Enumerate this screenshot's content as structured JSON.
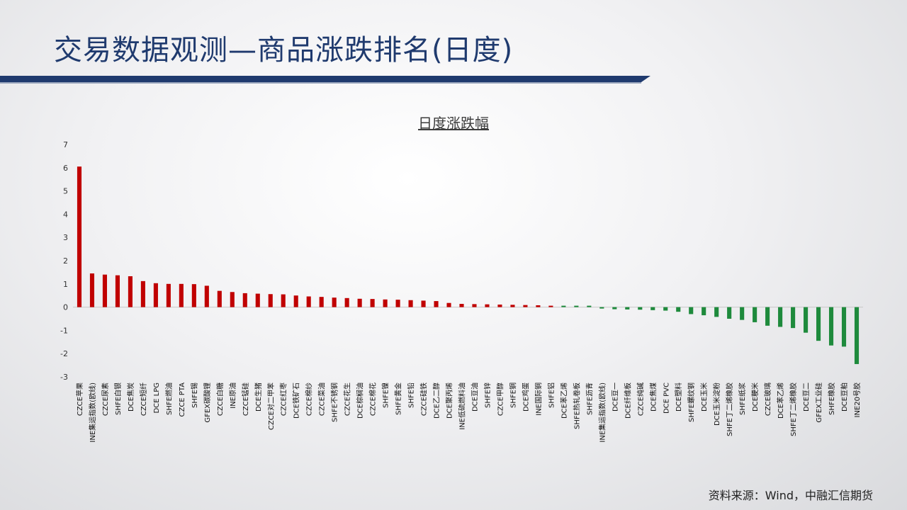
{
  "slide": {
    "title": "交易数据观测—商品涨跌排名(日度)",
    "source": "资料来源：Wind，中融汇信期货"
  },
  "colors": {
    "up": "#c00000",
    "down": "#1e8a3c",
    "title": "#1f3a6e",
    "band": "#1f3a6e"
  },
  "chart_data": {
    "type": "bar",
    "title": "日度涨跌幅",
    "xlabel": "",
    "ylabel": "",
    "ylim": [
      -3,
      7
    ],
    "yticks": [
      -3,
      -2,
      -1,
      0,
      1,
      2,
      3,
      4,
      5,
      6,
      7
    ],
    "grid": false,
    "legend": "none",
    "categories": [
      "CZCE苹果",
      "INE集运指数(欧线)",
      "CZCE尿素",
      "SHFE白银",
      "DCE焦炭",
      "CZCE短纤",
      "DCE LPG",
      "SHFE燃油",
      "CZCE PTA",
      "SHFE锡",
      "GFEX碳酸锂",
      "CZCE白糖",
      "INE原油",
      "CZCE锰硅",
      "DCE生猪",
      "CZCE对二甲苯",
      "CZCE红枣",
      "DCE铁矿石",
      "CZCE棉纱",
      "CZCE菜油",
      "SHFE不锈钢",
      "CZCE花生",
      "DCE棕榈油",
      "CZCE棉花",
      "SHFE镍",
      "SHFE黄金",
      "SHFE铅",
      "CZCE硅铁",
      "DCE乙二醇",
      "DCE聚丙烯",
      "INE低硫燃料油",
      "DCE豆油",
      "SHFE锌",
      "CZCE甲醇",
      "SHFE铜",
      "DCE鸡蛋",
      "INE国际铜",
      "SHFE铝",
      "DCE苯乙烯",
      "SHFE热轧卷板",
      "SHFE沥青",
      "INE集运指数(欧线)",
      "DCE豆一",
      "DCE纤维板",
      "CZCE纯碱",
      "DCE焦煤",
      "DCE PVC",
      "DCE塑料",
      "SHFE螺纹钢",
      "DCE玉米",
      "DCE玉米淀粉",
      "SHFE丁二烯橡胶",
      "SHFE纸浆",
      "DCE粳米",
      "CZCE玻璃",
      "DCE苯乙烯",
      "SHFE丁二烯橡胶",
      "DCE豆二",
      "GFEX工业硅",
      "SHFE橡胶",
      "DCE豆粕",
      "INE20号胶"
    ],
    "values": [
      6.05,
      1.45,
      1.4,
      1.37,
      1.33,
      1.12,
      1.03,
      1.0,
      1.0,
      0.99,
      0.92,
      0.7,
      0.65,
      0.6,
      0.58,
      0.56,
      0.55,
      0.5,
      0.46,
      0.44,
      0.41,
      0.39,
      0.36,
      0.35,
      0.33,
      0.32,
      0.3,
      0.28,
      0.26,
      0.18,
      0.14,
      0.13,
      0.12,
      0.11,
      0.1,
      0.09,
      0.08,
      0.06,
      0.0,
      0.0,
      0.0,
      -0.06,
      -0.09,
      -0.1,
      -0.11,
      -0.13,
      -0.15,
      -0.2,
      -0.3,
      -0.35,
      -0.42,
      -0.5,
      -0.55,
      -0.65,
      -0.8,
      -0.85,
      -0.9,
      -1.1,
      -1.45,
      -1.65,
      -1.7,
      -2.45
    ]
  }
}
